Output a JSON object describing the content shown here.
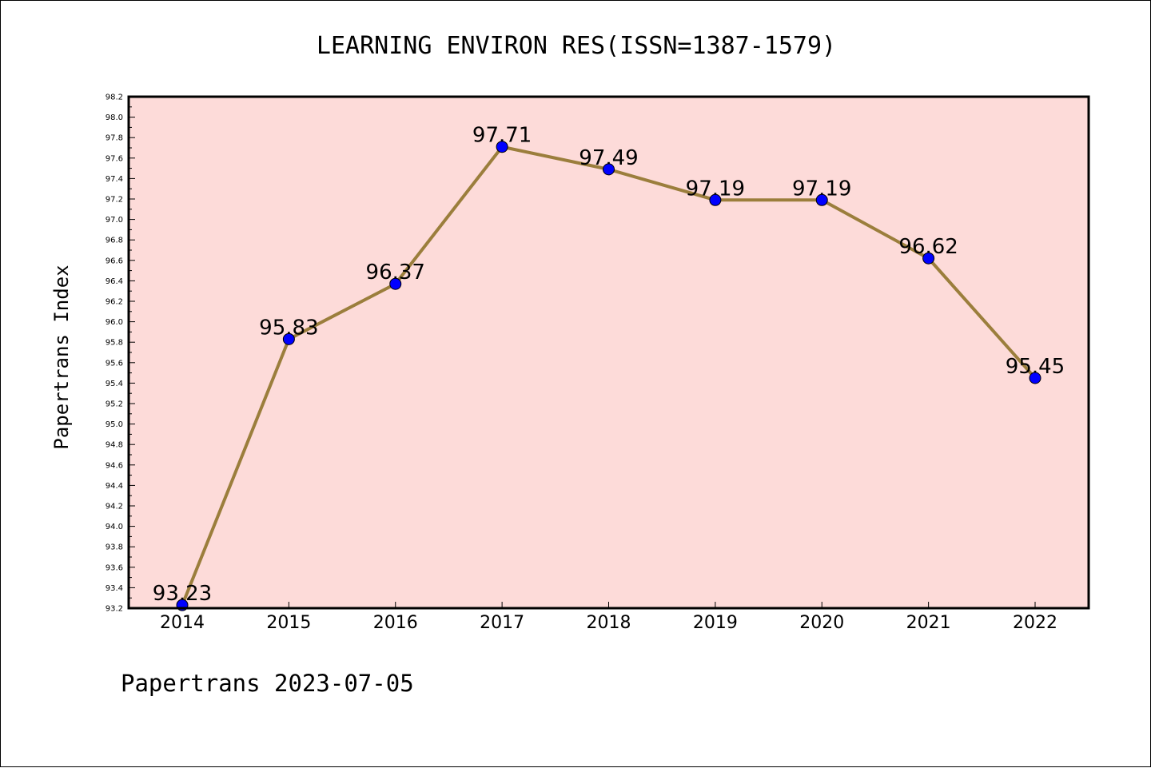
{
  "chart_data": {
    "type": "line",
    "title": "LEARNING ENVIRON RES(ISSN=1387-1579)",
    "ylabel": "Papertrans Index",
    "xlabel": "",
    "footer": "Papertrans 2023-07-05",
    "categories": [
      "2014",
      "2015",
      "2016",
      "2017",
      "2018",
      "2019",
      "2020",
      "2021",
      "2022"
    ],
    "values": [
      93.23,
      95.83,
      96.37,
      97.71,
      97.49,
      97.19,
      97.19,
      96.62,
      95.45
    ],
    "data_labels": [
      "93.23",
      "95.83",
      "96.37",
      "97.71",
      "97.49",
      "97.19",
      "97.19",
      "96.62",
      "95.45"
    ],
    "ylim": [
      93.2,
      98.2
    ],
    "yticks": [
      "93.2",
      "93.4",
      "93.6",
      "93.8",
      "94.0",
      "94.2",
      "94.4",
      "94.6",
      "94.8",
      "95.0",
      "95.2",
      "95.4",
      "95.6",
      "95.8",
      "96.0",
      "96.2",
      "96.4",
      "96.6",
      "96.8",
      "97.0",
      "97.2",
      "97.4",
      "97.6",
      "97.8",
      "98.0",
      "98.2"
    ],
    "grid": false,
    "colors": {
      "plot_background": "#fddbd9",
      "line": "#9b7e3c",
      "marker": "#0000ff"
    }
  }
}
